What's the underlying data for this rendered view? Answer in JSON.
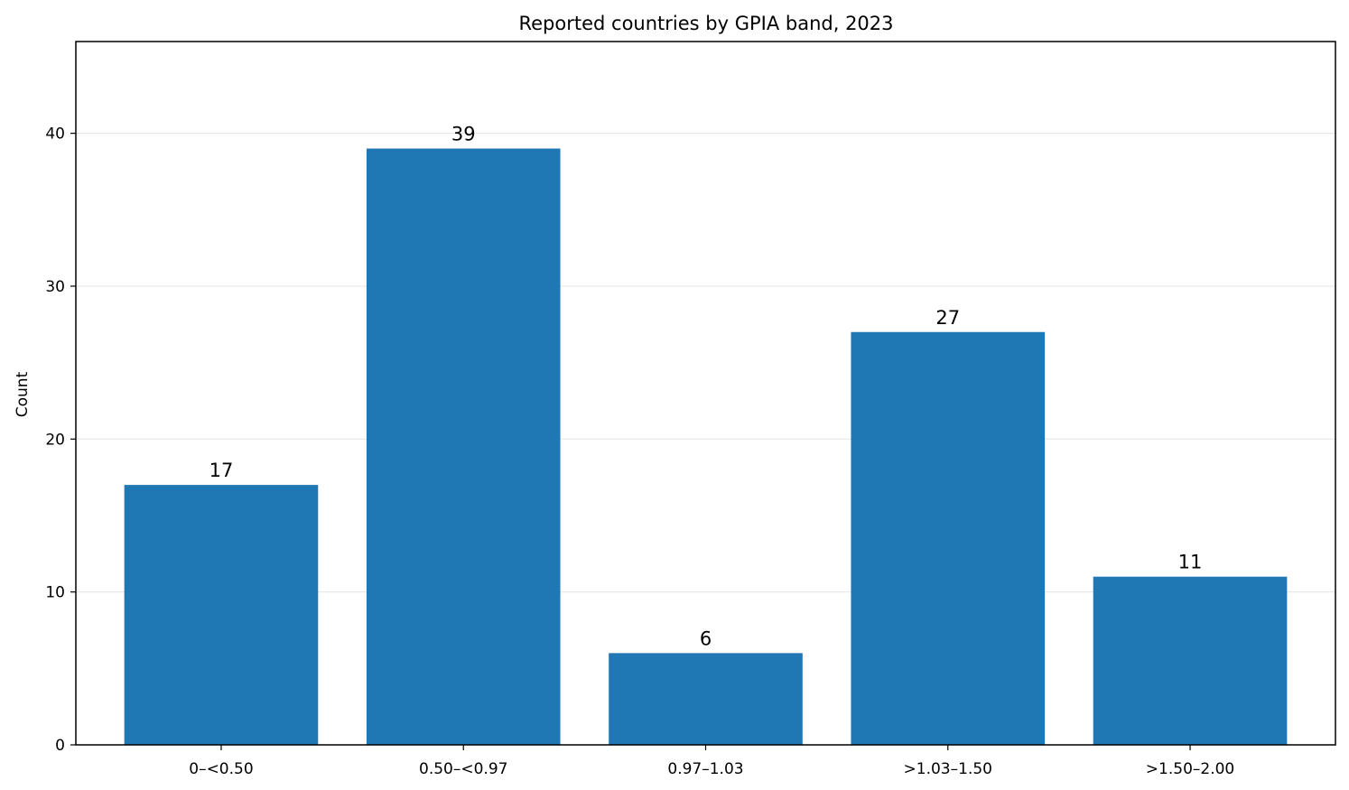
{
  "chart_data": {
    "type": "bar",
    "title": "Reported countries by GPIA band, 2023",
    "xlabel": "",
    "ylabel": "Count",
    "categories": [
      "0–<0.50",
      "0.50–<0.97",
      "0.97–1.03",
      ">1.03–1.50",
      ">1.50–2.00"
    ],
    "values": [
      17,
      39,
      6,
      27,
      11
    ],
    "ylim": [
      0,
      46
    ],
    "yticks": [
      0,
      10,
      20,
      30,
      40
    ],
    "grid": "y",
    "legend": "none",
    "colors": {
      "bar": "#1f77b4",
      "grid": "#e8e8e8",
      "axis": "#000000"
    }
  }
}
